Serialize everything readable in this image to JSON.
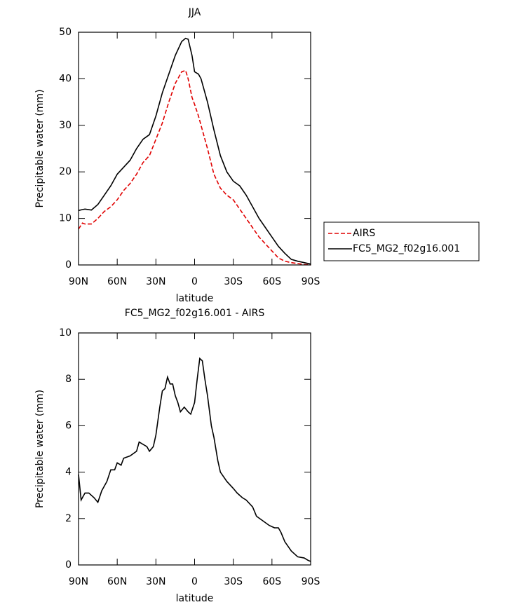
{
  "chart_data": [
    {
      "type": "line",
      "title": "JJA",
      "xlabel": "latitude",
      "ylabel": "Precipitable water (mm)",
      "x": [
        90,
        87,
        85,
        80,
        75,
        70,
        65,
        60,
        55,
        50,
        45,
        40,
        35,
        30,
        25,
        20,
        15,
        10,
        7,
        5,
        2,
        0,
        -3,
        -5,
        -10,
        -15,
        -20,
        -25,
        -30,
        -35,
        -40,
        -45,
        -50,
        -55,
        -60,
        -65,
        -70,
        -75,
        -80,
        -85,
        -90
      ],
      "series": [
        {
          "name": "AIRS",
          "color": "#e00000",
          "dash": true,
          "values": [
            7.7,
            9,
            8.8,
            8.8,
            10,
            11.5,
            12.5,
            14,
            16,
            17.5,
            19.5,
            22,
            23.5,
            27,
            30.5,
            35,
            39,
            41.5,
            41.8,
            40,
            36,
            34.5,
            32,
            30,
            25,
            19.5,
            16.5,
            15,
            14,
            12,
            10,
            8,
            6,
            4.5,
            3,
            1.5,
            0.8,
            0.5,
            0.3,
            0.1,
            0
          ]
        },
        {
          "name": "FC5_MG2_f02g16.001",
          "color": "#000000",
          "dash": false,
          "values": [
            11.7,
            11.9,
            12,
            11.8,
            13,
            15,
            17,
            19.5,
            21,
            22.5,
            25,
            27,
            28,
            32,
            37,
            41,
            45,
            48,
            48.7,
            48.5,
            45,
            41.5,
            41,
            40,
            35,
            29,
            23.5,
            20,
            18,
            17,
            15,
            12.5,
            10,
            8,
            6,
            4,
            2.5,
            1.2,
            0.8,
            0.5,
            0.2
          ]
        }
      ],
      "xlim": [
        90,
        -90
      ],
      "xticks": [
        {
          "value": 90,
          "label": "90N"
        },
        {
          "value": 60,
          "label": "60N"
        },
        {
          "value": 30,
          "label": "30N"
        },
        0,
        {
          "value": -30,
          "label": "30S"
        },
        {
          "value": -60,
          "label": "60S"
        },
        {
          "value": -90,
          "label": "90S"
        }
      ],
      "ylim": [
        0,
        50
      ],
      "yticks": [
        0,
        10,
        20,
        30,
        40,
        50
      ],
      "legend": "right"
    },
    {
      "type": "line",
      "title": "FC5_MG2_f02g16.001 - AIRS",
      "xlabel": "latitude",
      "ylabel": "Precipitable water (mm)",
      "x": [
        90,
        88,
        85,
        82,
        78,
        75,
        72,
        68,
        65,
        62,
        60,
        57,
        55,
        50,
        45,
        43,
        40,
        37,
        35,
        32,
        30,
        27,
        25,
        23,
        21,
        19,
        17,
        15,
        13,
        11,
        8,
        5,
        3,
        0,
        -2,
        -4,
        -6,
        -8,
        -10,
        -13,
        -15,
        -18,
        -20,
        -25,
        -30,
        -33,
        -37,
        -40,
        -45,
        -48,
        -53,
        -58,
        -62,
        -65,
        -67,
        -70,
        -75,
        -80,
        -85,
        -88,
        -90
      ],
      "series": [
        {
          "color": "#000000",
          "dash": false,
          "values": [
            3.9,
            2.8,
            3.1,
            3.1,
            2.9,
            2.7,
            3.2,
            3.6,
            4.1,
            4.1,
            4.4,
            4.3,
            4.6,
            4.7,
            4.9,
            5.3,
            5.2,
            5.1,
            4.9,
            5.1,
            5.6,
            6.8,
            7.5,
            7.6,
            8.1,
            7.8,
            7.8,
            7.3,
            7.0,
            6.6,
            6.8,
            6.6,
            6.5,
            7.0,
            8.0,
            8.9,
            8.8,
            8.0,
            7.3,
            6.0,
            5.5,
            4.5,
            4.0,
            3.6,
            3.3,
            3.1,
            2.9,
            2.8,
            2.5,
            2.1,
            1.9,
            1.7,
            1.6,
            1.6,
            1.4,
            1.0,
            0.6,
            0.35,
            0.3,
            0.2,
            0.15
          ]
        }
      ],
      "xlim": [
        90,
        -90
      ],
      "xticks": [
        {
          "value": 90,
          "label": "90N"
        },
        {
          "value": 60,
          "label": "60N"
        },
        {
          "value": 30,
          "label": "30N"
        },
        0,
        {
          "value": -30,
          "label": "30S"
        },
        {
          "value": -60,
          "label": "60S"
        },
        {
          "value": -90,
          "label": "90S"
        }
      ],
      "ylim": [
        0,
        10
      ],
      "yticks": [
        0,
        2,
        4,
        6,
        8,
        10
      ]
    }
  ]
}
